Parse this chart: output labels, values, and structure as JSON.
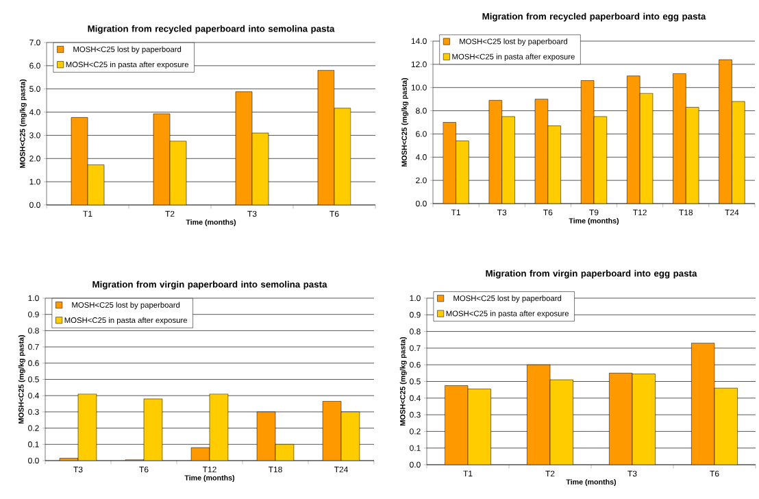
{
  "chart_data": [
    {
      "type": "bar",
      "title": "Migration from recycled paperboard into semolina pasta",
      "xlabel": "Time (months)",
      "ylabel": "MOSH<C25 (mg/kg pasta)",
      "categories": [
        "T1",
        "T2",
        "T3",
        "T6"
      ],
      "series": [
        {
          "name": "MOSH<C25 lost by paperboard",
          "color": "#ff9900",
          "values": [
            3.77,
            3.93,
            4.88,
            5.8
          ]
        },
        {
          "name": "MOSH<C25 in pasta after exposure",
          "color": "#ffcc00",
          "values": [
            1.73,
            2.75,
            3.1,
            4.17
          ]
        }
      ],
      "ylim": [
        0,
        7
      ],
      "yticks": [
        {
          "value": 0,
          "label": "0.0"
        },
        {
          "value": 1,
          "label": "1.0"
        },
        {
          "value": 2,
          "label": "2.0"
        },
        {
          "value": 3,
          "label": "3.0"
        },
        {
          "value": 4,
          "label": "4.0"
        },
        {
          "value": 5,
          "label": "5.0"
        },
        {
          "value": 6,
          "label": "6.0"
        },
        {
          "value": 7,
          "label": "7.0"
        }
      ],
      "grid": "y",
      "legend": "top left"
    },
    {
      "type": "bar",
      "title": "Migration from recycled paperboard into egg pasta",
      "xlabel": "Time (months)",
      "ylabel": "MOSH<C25 (mg/kg pasta)",
      "categories": [
        "T1",
        "T3",
        "T6",
        "T9",
        "T12",
        "T18",
        "T24"
      ],
      "series": [
        {
          "name": "MOSH<C25 lost by paperboard",
          "color": "#ff9900",
          "values": [
            7.0,
            8.9,
            9.0,
            10.6,
            11.0,
            11.2,
            12.4
          ]
        },
        {
          "name": "MOSH<C25 in pasta after exposure",
          "color": "#ffcc00",
          "values": [
            5.4,
            7.5,
            6.7,
            7.5,
            9.5,
            8.3,
            8.8
          ]
        }
      ],
      "ylim": [
        0,
        14
      ],
      "yticks": [
        {
          "value": 0,
          "label": "0.0"
        },
        {
          "value": 2,
          "label": "2.0"
        },
        {
          "value": 4,
          "label": "4.0"
        },
        {
          "value": 6,
          "label": "6.0"
        },
        {
          "value": 8,
          "label": "8.0"
        },
        {
          "value": 10,
          "label": "10.0"
        },
        {
          "value": 12,
          "label": "12.0"
        },
        {
          "value": 14,
          "label": "14.0"
        }
      ],
      "grid": "y",
      "legend": "top left"
    },
    {
      "type": "bar",
      "title": "Migration from virgin paperboard into semolina pasta",
      "xlabel": "Time (months)",
      "ylabel": "MOSH<C25 (mg/kg pasta)",
      "categories": [
        "T3",
        "T6",
        "T12",
        "T18",
        "T24"
      ],
      "series": [
        {
          "name": "MOSH<C25 lost by paperboard",
          "color": "#ff9900",
          "values": [
            0.015,
            0.005,
            0.08,
            0.3,
            0.365
          ]
        },
        {
          "name": "MOSH<C25 in pasta after exposure",
          "color": "#ffcc00",
          "values": [
            0.41,
            0.38,
            0.41,
            0.1,
            0.3
          ]
        }
      ],
      "ylim": [
        0,
        1
      ],
      "yticks": [
        {
          "value": 0,
          "label": "0.0"
        },
        {
          "value": 0.1,
          "label": "0.1"
        },
        {
          "value": 0.2,
          "label": "0.2"
        },
        {
          "value": 0.3,
          "label": "0.3"
        },
        {
          "value": 0.4,
          "label": "0.4"
        },
        {
          "value": 0.5,
          "label": "0.5"
        },
        {
          "value": 0.6,
          "label": "0.6"
        },
        {
          "value": 0.7,
          "label": "0.7"
        },
        {
          "value": 0.8,
          "label": "0.8"
        },
        {
          "value": 0.9,
          "label": "0.9"
        },
        {
          "value": 1,
          "label": "1.0"
        }
      ],
      "grid": "y",
      "legend": "top left"
    },
    {
      "type": "bar",
      "title": "Migration from virgin paperboard into egg pasta",
      "xlabel": "Time (months)",
      "ylabel": "MOSH<C25 (mg/kg pasta)",
      "categories": [
        "T1",
        "T2",
        "T3",
        "T6"
      ],
      "series": [
        {
          "name": "MOSH<C25 lost by paperboard",
          "color": "#ff9900",
          "values": [
            0.475,
            0.6,
            0.55,
            0.73
          ]
        },
        {
          "name": "MOSH<C25 in pasta after exposure",
          "color": "#ffcc00",
          "values": [
            0.455,
            0.51,
            0.545,
            0.46
          ]
        }
      ],
      "ylim": [
        0,
        1
      ],
      "yticks": [
        {
          "value": 0,
          "label": "0.0"
        },
        {
          "value": 0.1,
          "label": "0.1"
        },
        {
          "value": 0.2,
          "label": "0.2"
        },
        {
          "value": 0.3,
          "label": "0.3"
        },
        {
          "value": 0.4,
          "label": "0.4"
        },
        {
          "value": 0.5,
          "label": "0.5"
        },
        {
          "value": 0.6,
          "label": "0.6"
        },
        {
          "value": 0.7,
          "label": "0.7"
        },
        {
          "value": 0.8,
          "label": "0.8"
        },
        {
          "value": 0.9,
          "label": "0.9"
        },
        {
          "value": 1,
          "label": "1.0"
        }
      ],
      "grid": "y",
      "legend": "top left"
    }
  ]
}
